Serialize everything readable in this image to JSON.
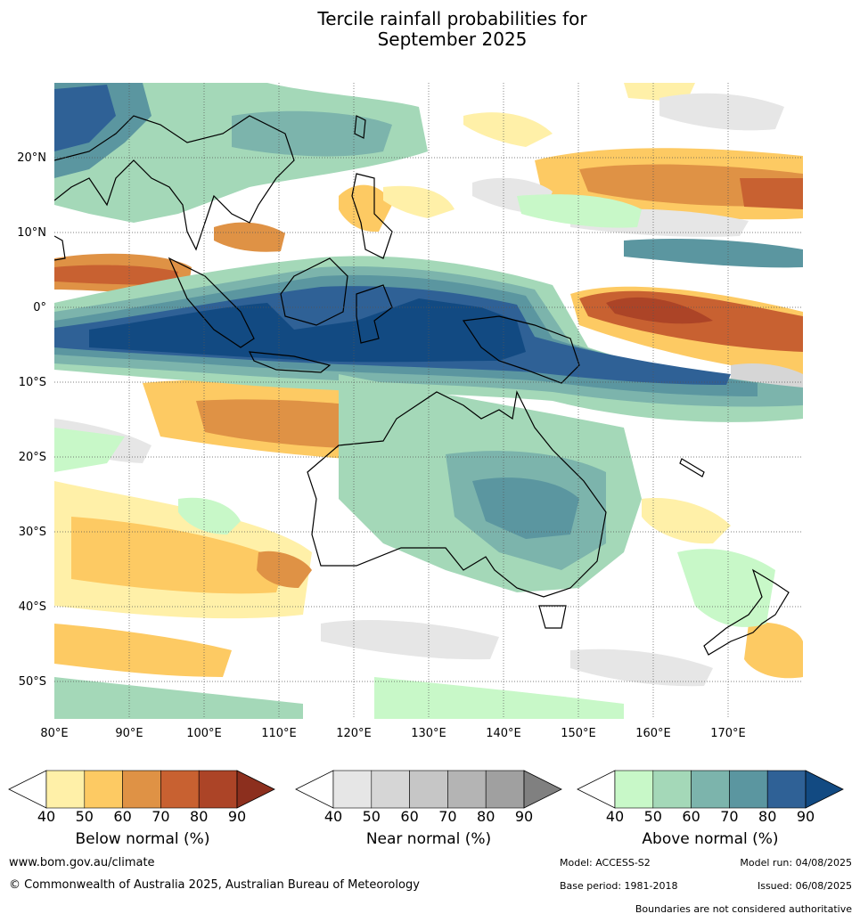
{
  "title": {
    "line1": "Tercile rainfall probabilities for",
    "line2": "September 2025"
  },
  "map": {
    "lon_labels": [
      "80°E",
      "90°E",
      "100°E",
      "110°E",
      "120°E",
      "130°E",
      "140°E",
      "150°E",
      "160°E",
      "170°E"
    ],
    "lat_labels": [
      "20°N",
      "10°N",
      "0°",
      "10°S",
      "20°S",
      "30°S",
      "40°S",
      "50°S"
    ],
    "lon_range": [
      80,
      180
    ],
    "lat_range": [
      -55,
      30
    ],
    "grid": true
  },
  "colorbars": [
    {
      "name": "below",
      "label": "Below normal (%)",
      "ticks": [
        "40",
        "50",
        "60",
        "70",
        "80",
        "90"
      ],
      "colors": [
        "#fff0a8",
        "#fdca63",
        "#df9245",
        "#c86131",
        "#ac4427",
        "#8c2f1e"
      ]
    },
    {
      "name": "near",
      "label": "Near normal (%)",
      "ticks": [
        "40",
        "50",
        "60",
        "70",
        "80",
        "90"
      ],
      "colors": [
        "#e6e6e6",
        "#d6d6d6",
        "#c6c6c6",
        "#b4b4b4",
        "#a0a0a0",
        "#808080"
      ]
    },
    {
      "name": "above",
      "label": "Above normal (%)",
      "ticks": [
        "40",
        "50",
        "60",
        "70",
        "80",
        "90"
      ],
      "colors": [
        "#c8f8c8",
        "#a4d8b8",
        "#7cb4ac",
        "#5b96a0",
        "#2f6196",
        "#124a82"
      ]
    }
  ],
  "footer": {
    "website": "www.bom.gov.au/climate",
    "copyright": "© Commonwealth of Australia 2025, Australian Bureau of Meteorology",
    "model": "Model: ACCESS-S2",
    "model_run": "Model run: 04/08/2025",
    "base_period": "Base period: 1981-2018",
    "issued": "Issued: 06/08/2025",
    "disclaimer": "Boundaries are not considered authoritative"
  }
}
